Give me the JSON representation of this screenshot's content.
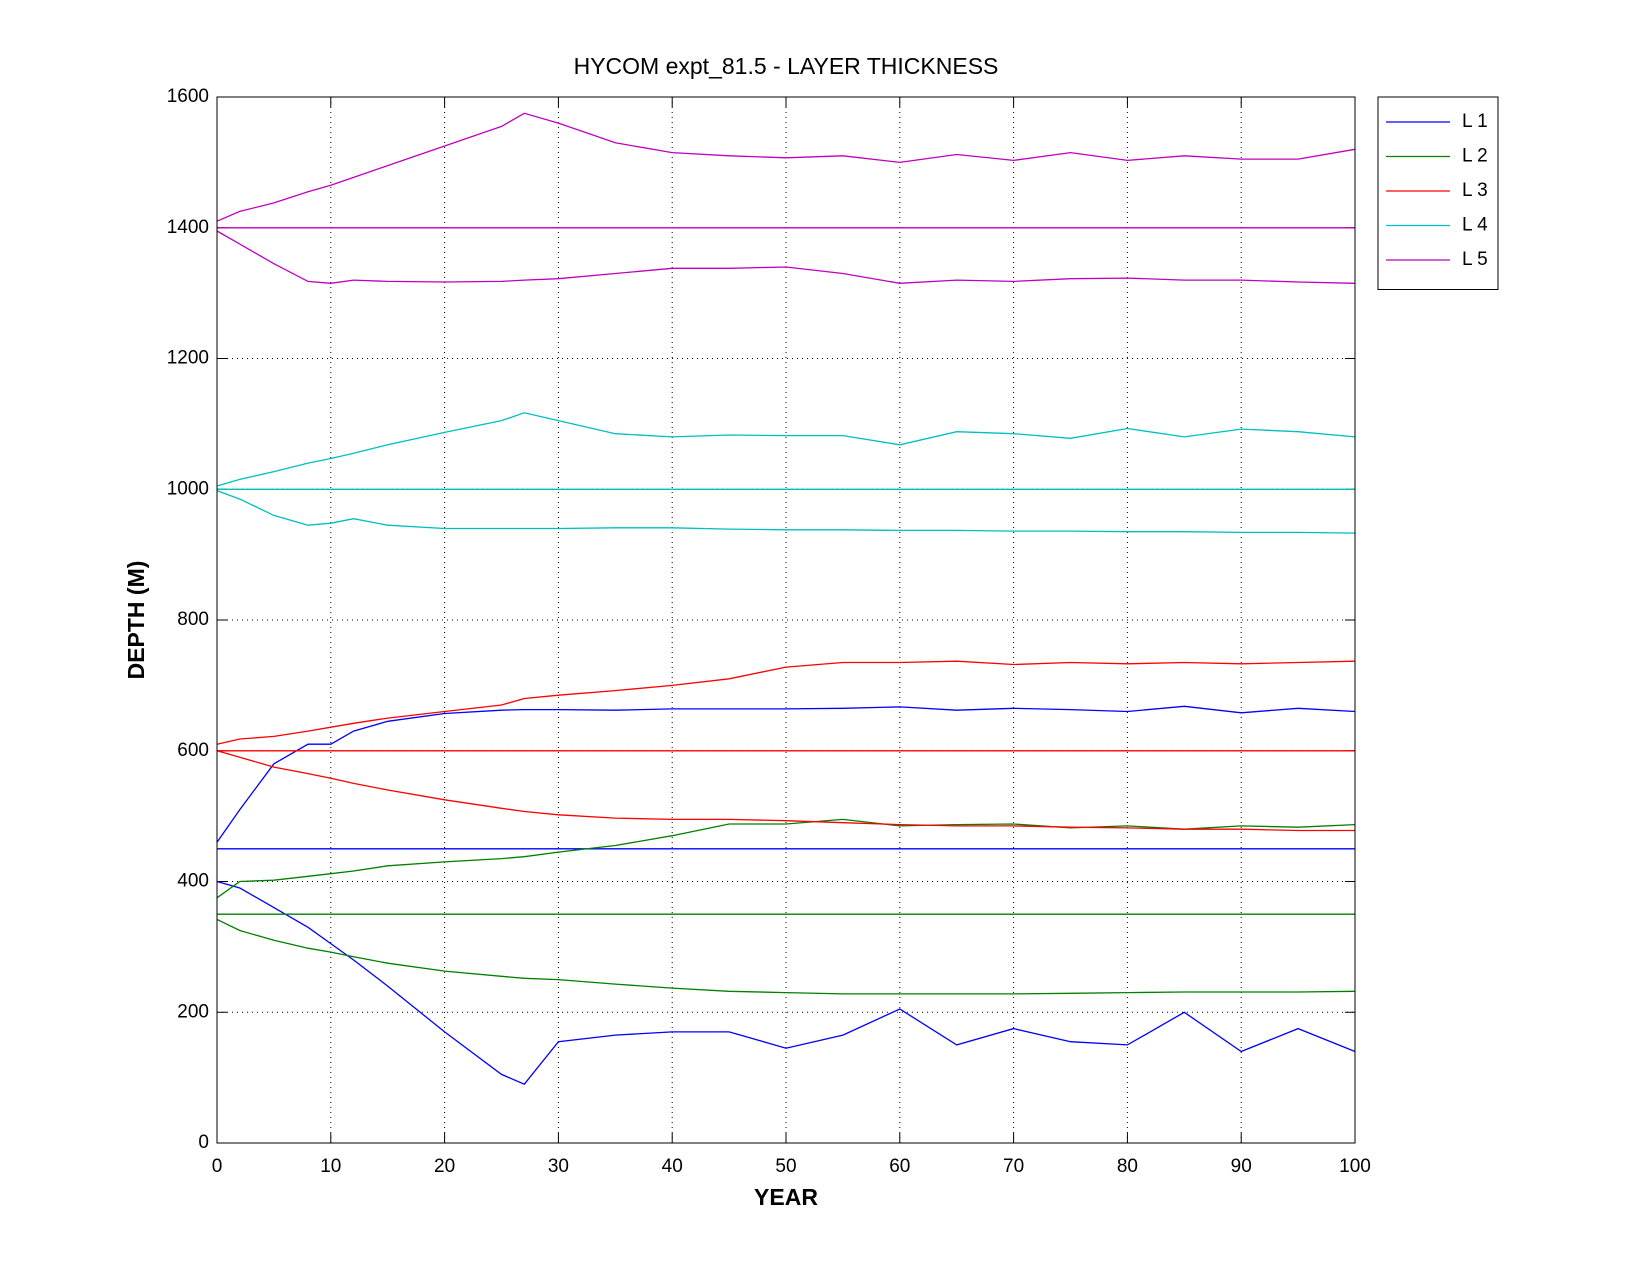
{
  "chart_data": {
    "type": "line",
    "title": "HYCOM expt_81.5 - LAYER THICKNESS",
    "x_label": "YEAR",
    "y_label": "DEPTH (M)",
    "xlim": [
      0,
      100
    ],
    "ylim": [
      0,
      1600
    ],
    "xticks": [
      0,
      10,
      20,
      30,
      40,
      50,
      60,
      70,
      80,
      90,
      100
    ],
    "yticks": [
      0,
      200,
      400,
      600,
      800,
      1000,
      1200,
      1400,
      1600
    ],
    "grid": true,
    "legend": "outside-right",
    "series": [
      {
        "name": "L 1",
        "color": "#0000ff",
        "x": [
          0,
          100
        ],
        "values": [
          450,
          450
        ]
      },
      {
        "color": "#0000ff",
        "x": [
          0,
          2,
          5,
          8,
          10,
          12,
          15,
          20,
          25,
          27,
          30,
          35,
          40,
          45,
          50,
          55,
          60,
          65,
          70,
          75,
          80,
          85,
          90,
          95,
          100
        ],
        "values": [
          460,
          510,
          580,
          610,
          610,
          630,
          645,
          657,
          662,
          663,
          663,
          662,
          664,
          664,
          664,
          665,
          667,
          662,
          665,
          663,
          660,
          668,
          658,
          665,
          660
        ]
      },
      {
        "color": "#0000ff",
        "x": [
          0,
          2,
          5,
          8,
          10,
          12,
          15,
          20,
          25,
          27,
          30,
          35,
          40,
          45,
          50,
          55,
          60,
          65,
          70,
          75,
          80,
          85,
          90,
          95,
          100
        ],
        "values": [
          400,
          390,
          360,
          330,
          305,
          280,
          240,
          170,
          105,
          90,
          155,
          165,
          170,
          170,
          145,
          165,
          205,
          150,
          175,
          155,
          150,
          200,
          140,
          175,
          140
        ]
      },
      {
        "name": "L 2",
        "color": "#008000",
        "x": [
          0,
          100
        ],
        "values": [
          350,
          350
        ]
      },
      {
        "color": "#008000",
        "x": [
          0,
          2,
          5,
          8,
          10,
          12,
          15,
          20,
          25,
          27,
          30,
          35,
          40,
          45,
          50,
          55,
          60,
          65,
          70,
          75,
          80,
          85,
          90,
          95,
          100
        ],
        "values": [
          375,
          400,
          402,
          408,
          412,
          416,
          424,
          430,
          435,
          438,
          445,
          455,
          470,
          488,
          488,
          495,
          485,
          487,
          488,
          482,
          485,
          480,
          485,
          483,
          487
        ]
      },
      {
        "color": "#008000",
        "x": [
          0,
          2,
          5,
          8,
          10,
          12,
          15,
          20,
          25,
          27,
          30,
          35,
          40,
          45,
          50,
          55,
          60,
          65,
          70,
          75,
          80,
          85,
          90,
          95,
          100
        ],
        "values": [
          342,
          325,
          310,
          298,
          292,
          285,
          275,
          263,
          255,
          252,
          250,
          243,
          237,
          232,
          230,
          228,
          228,
          228,
          228,
          229,
          230,
          231,
          231,
          231,
          232
        ]
      },
      {
        "name": "L 3",
        "color": "#ff0000",
        "x": [
          0,
          100
        ],
        "values": [
          600,
          600
        ]
      },
      {
        "color": "#ff0000",
        "x": [
          0,
          2,
          5,
          8,
          10,
          12,
          15,
          20,
          25,
          27,
          30,
          35,
          40,
          45,
          50,
          55,
          60,
          65,
          70,
          75,
          80,
          85,
          90,
          95,
          100
        ],
        "values": [
          610,
          618,
          622,
          630,
          636,
          642,
          650,
          660,
          670,
          680,
          685,
          692,
          700,
          710,
          728,
          735,
          735,
          737,
          732,
          735,
          733,
          735,
          733,
          735,
          737
        ]
      },
      {
        "color": "#ff0000",
        "x": [
          0,
          2,
          5,
          8,
          10,
          12,
          15,
          20,
          25,
          27,
          30,
          35,
          40,
          45,
          50,
          55,
          60,
          65,
          70,
          75,
          80,
          85,
          90,
          95,
          100
        ],
        "values": [
          600,
          590,
          575,
          565,
          558,
          550,
          540,
          525,
          512,
          507,
          502,
          497,
          495,
          495,
          493,
          490,
          487,
          485,
          485,
          483,
          482,
          480,
          480,
          478,
          478
        ]
      },
      {
        "name": "L 4",
        "color": "#00bfbf",
        "x": [
          0,
          100
        ],
        "values": [
          1000,
          1000
        ]
      },
      {
        "color": "#00bfbf",
        "x": [
          0,
          2,
          5,
          8,
          10,
          12,
          15,
          20,
          25,
          27,
          30,
          35,
          40,
          45,
          50,
          55,
          60,
          65,
          70,
          75,
          80,
          85,
          90,
          95,
          100
        ],
        "values": [
          1005,
          1015,
          1027,
          1040,
          1047,
          1055,
          1068,
          1087,
          1105,
          1117,
          1105,
          1085,
          1080,
          1083,
          1082,
          1082,
          1068,
          1088,
          1085,
          1078,
          1093,
          1080,
          1092,
          1088,
          1080
        ]
      },
      {
        "color": "#00bfbf",
        "x": [
          0,
          2,
          5,
          8,
          10,
          12,
          15,
          20,
          25,
          27,
          30,
          35,
          40,
          45,
          50,
          55,
          60,
          65,
          70,
          75,
          80,
          85,
          90,
          95,
          100
        ],
        "values": [
          998,
          985,
          960,
          945,
          948,
          955,
          945,
          940,
          940,
          940,
          940,
          941,
          941,
          939,
          938,
          938,
          937,
          937,
          936,
          936,
          935,
          935,
          934,
          934,
          933
        ]
      },
      {
        "name": "L 5",
        "color": "#bf00bf",
        "x": [
          0,
          100
        ],
        "values": [
          1400,
          1400
        ]
      },
      {
        "color": "#bf00bf",
        "x": [
          0,
          2,
          5,
          8,
          10,
          12,
          15,
          20,
          25,
          27,
          30,
          35,
          40,
          45,
          50,
          55,
          60,
          65,
          70,
          75,
          80,
          85,
          90,
          95,
          100
        ],
        "values": [
          1410,
          1425,
          1438,
          1455,
          1465,
          1477,
          1495,
          1525,
          1555,
          1575,
          1560,
          1530,
          1515,
          1510,
          1507,
          1510,
          1500,
          1512,
          1503,
          1515,
          1503,
          1510,
          1505,
          1505,
          1520
        ]
      },
      {
        "color": "#bf00bf",
        "x": [
          0,
          2,
          5,
          8,
          10,
          12,
          15,
          20,
          25,
          27,
          30,
          35,
          40,
          45,
          50,
          55,
          60,
          65,
          70,
          75,
          80,
          85,
          90,
          95,
          100
        ],
        "values": [
          1395,
          1375,
          1345,
          1318,
          1315,
          1320,
          1318,
          1317,
          1318,
          1320,
          1322,
          1330,
          1338,
          1338,
          1340,
          1330,
          1315,
          1320,
          1318,
          1322,
          1323,
          1320,
          1320,
          1317,
          1315
        ]
      }
    ]
  }
}
